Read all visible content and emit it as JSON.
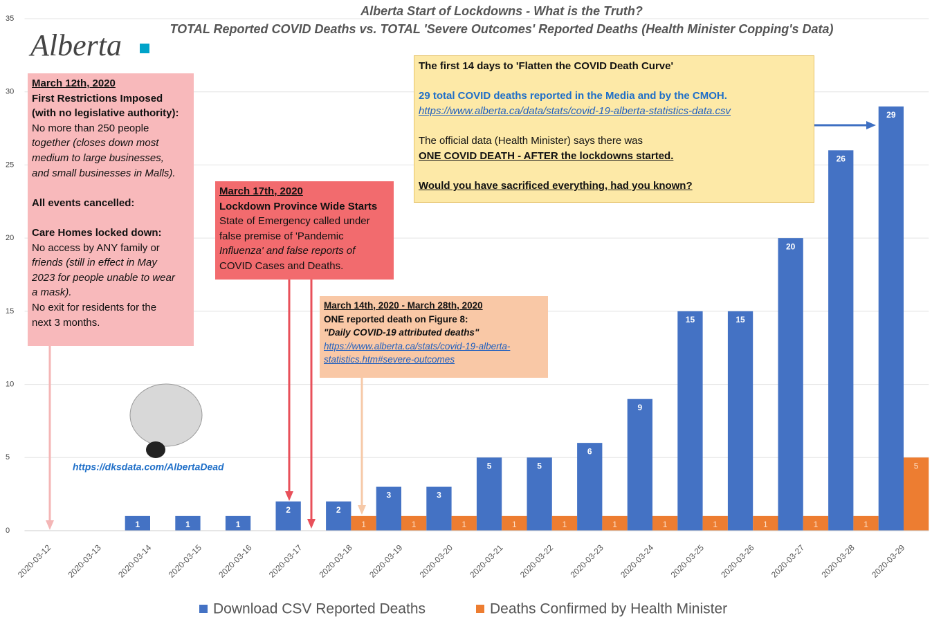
{
  "chart_data": {
    "type": "bar",
    "title": "Alberta Start of Lockdowns - What is the Truth?",
    "subtitle": "TOTAL Reported COVID Deaths vs. TOTAL 'Severe Outcomes' Reported Deaths (Health Minister Copping's Data)",
    "categories": [
      "2020-03-12",
      "2020-03-13",
      "2020-03-14",
      "2020-03-15",
      "2020-03-16",
      "2020-03-17",
      "2020-03-18",
      "2020-03-19",
      "2020-03-20",
      "2020-03-21",
      "2020-03-22",
      "2020-03-23",
      "2020-03-24",
      "2020-03-25",
      "2020-03-26",
      "2020-03-27",
      "2020-03-28",
      "2020-03-29"
    ],
    "series": [
      {
        "name": "Download CSV Reported Deaths",
        "color": "#4472c4",
        "values": [
          0,
          0,
          1,
          1,
          1,
          2,
          2,
          3,
          3,
          5,
          5,
          6,
          9,
          15,
          15,
          20,
          26,
          29
        ]
      },
      {
        "name": "Deaths Confirmed by Health Minister",
        "color": "#ed7d31",
        "values": [
          0,
          0,
          0,
          0,
          0,
          0,
          1,
          1,
          1,
          1,
          1,
          1,
          1,
          1,
          1,
          1,
          1,
          5
        ]
      }
    ],
    "ylim": [
      0,
      35
    ],
    "yticks": [
      0,
      5,
      10,
      15,
      20,
      25,
      30,
      35
    ],
    "grid": true,
    "legend": "bottom",
    "annotations": {
      "logo": "Alberta",
      "watermark": "https://dksdata.com/AlbertaDead",
      "boxes": [
        {
          "lines": [
            "March 12th, 2020",
            "First Restrictions Imposed",
            "(with no legislative authority):",
            "No more than 250 people",
            "together (closes down most",
            "medium to large businesses,",
            "and small businesses in Malls).",
            "All events cancelled:",
            "Care Homes locked down:",
            "No access by ANY family or",
            "friends (still in effect in May",
            "2023 for people unable to wear",
            "a mask).",
            "No exit for residents for the",
            "next 3 months."
          ]
        },
        {
          "lines": [
            "March 17th, 2020",
            "Lockdown Province Wide Starts",
            "State of Emergency called under",
            "false premise of 'Pandemic",
            "Influenza' and false reports of",
            "COVID Cases and Deaths."
          ]
        },
        {
          "lines": [
            "March 14th, 2020 - March 28th, 2020",
            "ONE reported death on Figure 8:",
            "\"Daily COVID-19 attributed deaths\"",
            "https://www.alberta.ca/stats/covid-19-alberta-",
            "statistics.htm#severe-outcomes"
          ]
        },
        {
          "lines": [
            "The first 14 days to 'Flatten the COVID Death Curve'",
            "29 total COVID deaths reported in the Media and by the CMOH.",
            "https://www.alberta.ca/data/stats/covid-19-alberta-statistics-data.csv",
            "The official data (Health Minister) says there was",
            "ONE COVID DEATH - AFTER the lockdowns started.",
            "Would you have sacrificed everything, had you known?"
          ]
        }
      ]
    }
  }
}
